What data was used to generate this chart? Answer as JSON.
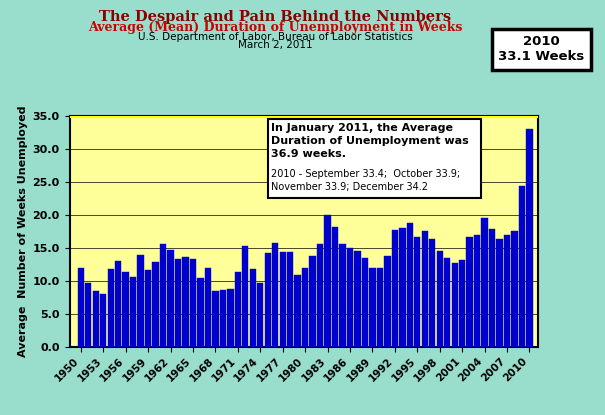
{
  "title1": "The Despair and Pain Behind the Numbers",
  "title2": "Average (Mean) Duration of Unemployment in Weeks",
  "subtitle1": "U.S. Department of Labor, Bureau of Labor Statistics",
  "subtitle2": "March 2, 2011",
  "ylabel": "Average  Number of Weeks Unemployed",
  "ylim": [
    0,
    35
  ],
  "yticks": [
    0.0,
    5.0,
    10.0,
    15.0,
    20.0,
    25.0,
    30.0,
    35.0
  ],
  "bar_color": "#0000CC",
  "bar_edge_color": "#0000CC",
  "background_outer": "#99DDCC",
  "background_plot": "#FFFF99",
  "label_2010": "2010\n33.1 Weeks",
  "years": [
    1950,
    1951,
    1952,
    1953,
    1954,
    1955,
    1956,
    1957,
    1958,
    1959,
    1960,
    1961,
    1962,
    1963,
    1964,
    1965,
    1966,
    1967,
    1968,
    1969,
    1970,
    1971,
    1972,
    1973,
    1974,
    1975,
    1976,
    1977,
    1978,
    1979,
    1980,
    1981,
    1982,
    1983,
    1984,
    1985,
    1986,
    1987,
    1988,
    1989,
    1990,
    1991,
    1992,
    1993,
    1994,
    1995,
    1996,
    1997,
    1998,
    1999,
    2000,
    2001,
    2002,
    2003,
    2004,
    2005,
    2006,
    2007,
    2008,
    2009,
    2010
  ],
  "values": [
    11.9,
    9.7,
    8.4,
    8.0,
    11.8,
    13.0,
    11.3,
    10.5,
    13.9,
    11.6,
    12.8,
    15.6,
    14.7,
    13.3,
    13.6,
    13.3,
    10.4,
    12.0,
    8.4,
    8.6,
    8.7,
    11.3,
    15.3,
    11.8,
    9.7,
    14.2,
    15.8,
    14.3,
    14.3,
    10.8,
    11.9,
    13.7,
    15.6,
    20.0,
    18.2,
    15.6,
    15.0,
    14.5,
    13.5,
    11.9,
    12.0,
    13.7,
    17.7,
    18.0,
    18.8,
    16.6,
    17.5,
    16.3,
    14.5,
    13.4,
    12.7,
    13.1,
    16.6,
    17.0,
    19.6,
    17.9,
    16.4,
    17.0,
    17.6,
    24.4,
    33.1
  ],
  "xtick_years": [
    1950,
    1953,
    1956,
    1959,
    1962,
    1965,
    1968,
    1971,
    1974,
    1977,
    1980,
    1983,
    1986,
    1989,
    1992,
    1995,
    1998,
    2001,
    2004,
    2007,
    2010
  ]
}
